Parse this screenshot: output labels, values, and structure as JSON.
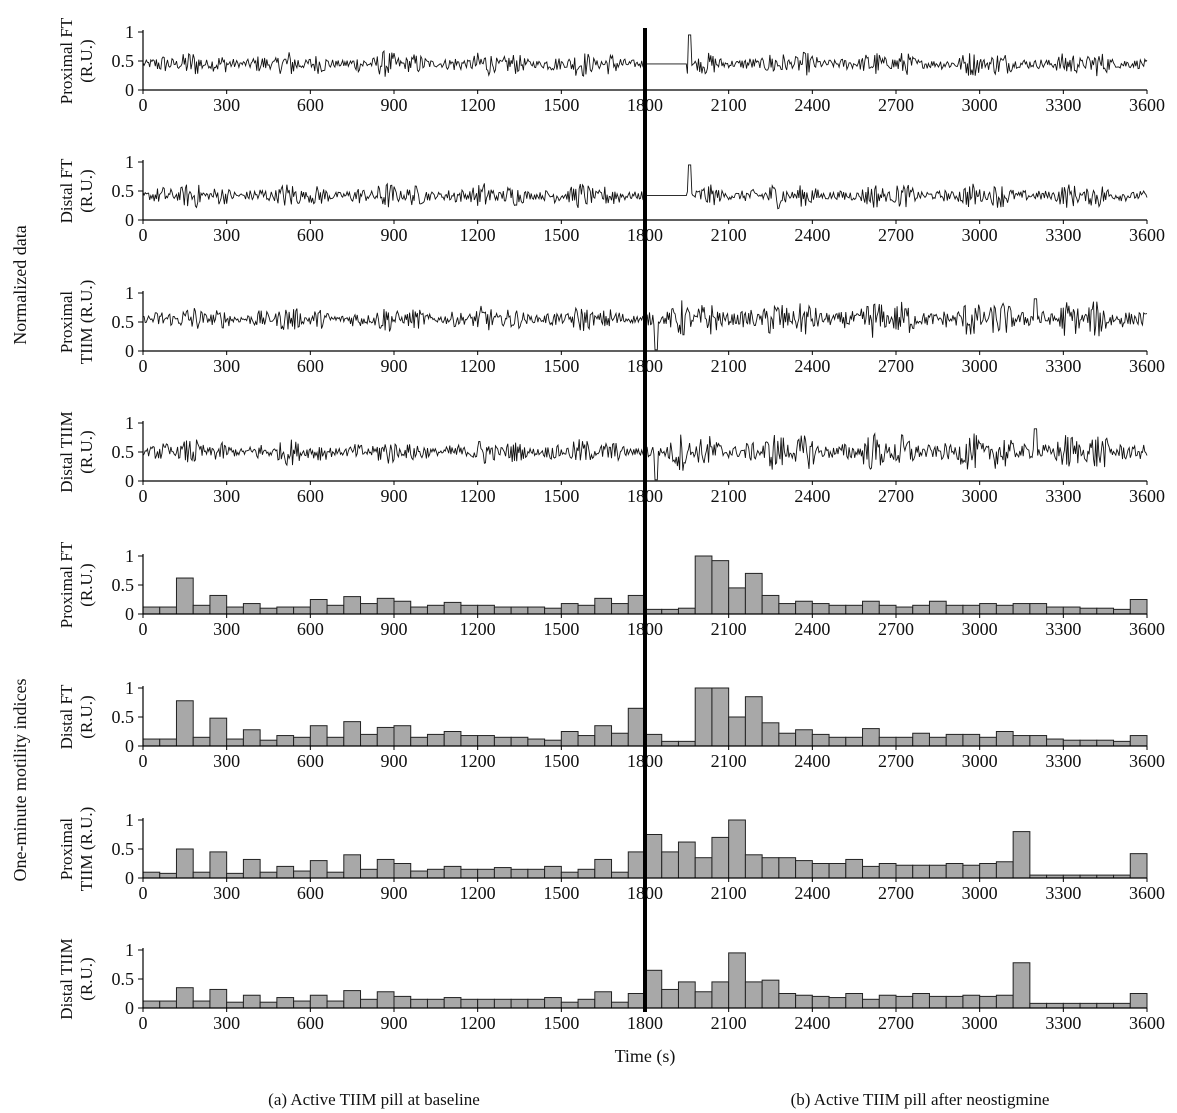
{
  "figure": {
    "group_labels": [
      "Normalized data",
      "One-minute motility indices"
    ],
    "xlabel": "Time (s)",
    "captions": [
      "(a) Active TIIM pill at baseline",
      "(b) Active TIIM pill after neostigmine"
    ]
  },
  "chart_data": [
    {
      "type": "line",
      "group": "Normalized data",
      "ylabel": [
        "Proximal FT",
        "(R.U.)"
      ],
      "xlim": [
        0,
        3600
      ],
      "ylim": [
        0,
        1
      ],
      "xticks": [
        0,
        300,
        600,
        900,
        1200,
        1500,
        1800,
        2100,
        2400,
        2700,
        3000,
        3300,
        3600
      ],
      "yticks": [
        0,
        0.5,
        1
      ],
      "ytick_labels": [
        "0",
        "0.5",
        "1"
      ],
      "baseline": 0.45,
      "series_description": "oscillating signal around 0.45; flat near 1800-1950; spike near 1960"
    },
    {
      "type": "line",
      "group": "Normalized data",
      "ylabel": [
        "Distal FT",
        "(R.U.)"
      ],
      "xlim": [
        0,
        3600
      ],
      "ylim": [
        0,
        1
      ],
      "xticks": [
        0,
        300,
        600,
        900,
        1200,
        1500,
        1800,
        2100,
        2400,
        2700,
        3000,
        3300,
        3600
      ],
      "yticks": [
        0,
        0.5,
        1
      ],
      "ytick_labels": [
        "0",
        "0.5",
        "1"
      ],
      "baseline": 0.42,
      "series_description": "oscillating signal around 0.42; flat near 1800-1950; spike near 1960"
    },
    {
      "type": "line",
      "group": "Normalized data",
      "ylabel": [
        "Proximal",
        "TIIM (R.U.)"
      ],
      "xlim": [
        0,
        3600
      ],
      "ylim": [
        0,
        1
      ],
      "xticks": [
        0,
        300,
        600,
        900,
        1200,
        1500,
        1800,
        2100,
        2400,
        2700,
        3000,
        3300,
        3600
      ],
      "yticks": [
        0,
        0.5,
        1
      ],
      "ytick_labels": [
        "0",
        "0.5",
        "1"
      ],
      "baseline": 0.55,
      "series_description": "oscillating signal around 0.55; larger amplitude after 1900"
    },
    {
      "type": "line",
      "group": "Normalized data",
      "ylabel": [
        "Distal TIIM",
        "(R.U.)"
      ],
      "xlim": [
        0,
        3600
      ],
      "ylim": [
        0,
        1
      ],
      "xticks": [
        0,
        300,
        600,
        900,
        1200,
        1500,
        1800,
        2100,
        2400,
        2700,
        3000,
        3300,
        3600
      ],
      "yticks": [
        0,
        0.5,
        1
      ],
      "ytick_labels": [
        "0",
        "0.5",
        "1"
      ],
      "baseline": 0.5,
      "series_description": "oscillating signal around 0.5; larger amplitude after 1900"
    },
    {
      "type": "bar",
      "group": "One-minute motility indices",
      "ylabel": [
        "Proximal FT",
        "(R.U.)"
      ],
      "xlim": [
        0,
        3600
      ],
      "ylim": [
        0,
        1
      ],
      "xticks": [
        0,
        300,
        600,
        900,
        1200,
        1500,
        1800,
        2100,
        2400,
        2700,
        3000,
        3300,
        3600
      ],
      "yticks": [
        0,
        0.5,
        1
      ],
      "ytick_labels": [
        "0",
        "0.5",
        "1"
      ],
      "bin_width": 60,
      "values": [
        0.12,
        0.12,
        0.62,
        0.15,
        0.32,
        0.12,
        0.18,
        0.1,
        0.12,
        0.12,
        0.25,
        0.15,
        0.3,
        0.18,
        0.27,
        0.22,
        0.12,
        0.15,
        0.2,
        0.15,
        0.15,
        0.12,
        0.12,
        0.12,
        0.1,
        0.18,
        0.15,
        0.27,
        0.18,
        0.32,
        0.08,
        0.08,
        0.1,
        1.0,
        0.92,
        0.45,
        0.7,
        0.32,
        0.18,
        0.22,
        0.18,
        0.15,
        0.15,
        0.22,
        0.15,
        0.12,
        0.15,
        0.22,
        0.15,
        0.15,
        0.18,
        0.15,
        0.18,
        0.18,
        0.12,
        0.12,
        0.1,
        0.1,
        0.08,
        0.25
      ]
    },
    {
      "type": "bar",
      "group": "One-minute motility indices",
      "ylabel": [
        "Distal FT",
        "(R.U.)"
      ],
      "xlim": [
        0,
        3600
      ],
      "ylim": [
        0,
        1
      ],
      "xticks": [
        0,
        300,
        600,
        900,
        1200,
        1500,
        1800,
        2100,
        2400,
        2700,
        3000,
        3300,
        3600
      ],
      "yticks": [
        0,
        0.5,
        1
      ],
      "ytick_labels": [
        "0",
        "0.5",
        "1"
      ],
      "bin_width": 60,
      "values": [
        0.12,
        0.12,
        0.78,
        0.15,
        0.48,
        0.12,
        0.28,
        0.1,
        0.18,
        0.15,
        0.35,
        0.15,
        0.42,
        0.2,
        0.32,
        0.35,
        0.15,
        0.2,
        0.25,
        0.18,
        0.18,
        0.15,
        0.15,
        0.12,
        0.1,
        0.25,
        0.18,
        0.35,
        0.22,
        0.65,
        0.2,
        0.08,
        0.08,
        1.0,
        1.0,
        0.5,
        0.85,
        0.4,
        0.22,
        0.28,
        0.2,
        0.15,
        0.15,
        0.3,
        0.15,
        0.15,
        0.22,
        0.15,
        0.2,
        0.2,
        0.15,
        0.25,
        0.18,
        0.18,
        0.12,
        0.1,
        0.1,
        0.1,
        0.08,
        0.18
      ]
    },
    {
      "type": "bar",
      "group": "One-minute motility indices",
      "ylabel": [
        "Proximal",
        "TIIM (R.U.)"
      ],
      "xlim": [
        0,
        3600
      ],
      "ylim": [
        0,
        1
      ],
      "xticks": [
        0,
        300,
        600,
        900,
        1200,
        1500,
        1800,
        2100,
        2400,
        2700,
        3000,
        3300,
        3600
      ],
      "yticks": [
        0,
        0.5,
        1
      ],
      "ytick_labels": [
        "0",
        "0.5",
        "1"
      ],
      "bin_width": 60,
      "values": [
        0.1,
        0.08,
        0.5,
        0.1,
        0.45,
        0.08,
        0.32,
        0.1,
        0.2,
        0.12,
        0.3,
        0.1,
        0.4,
        0.15,
        0.32,
        0.25,
        0.12,
        0.15,
        0.2,
        0.15,
        0.15,
        0.18,
        0.15,
        0.15,
        0.2,
        0.1,
        0.15,
        0.32,
        0.1,
        0.45,
        0.75,
        0.45,
        0.62,
        0.35,
        0.7,
        1.0,
        0.4,
        0.35,
        0.35,
        0.3,
        0.25,
        0.25,
        0.32,
        0.2,
        0.25,
        0.22,
        0.22,
        0.22,
        0.25,
        0.22,
        0.25,
        0.28,
        0.8,
        0.05,
        0.05,
        0.05,
        0.05,
        0.05,
        0.05,
        0.42
      ]
    },
    {
      "type": "bar",
      "group": "One-minute motility indices",
      "ylabel": [
        "Distal TIIM",
        "(R.U.)"
      ],
      "xlim": [
        0,
        3600
      ],
      "ylim": [
        0,
        1
      ],
      "xticks": [
        0,
        300,
        600,
        900,
        1200,
        1500,
        1800,
        2100,
        2400,
        2700,
        3000,
        3300,
        3600
      ],
      "yticks": [
        0,
        0.5,
        1
      ],
      "ytick_labels": [
        "0",
        "0.5",
        "1"
      ],
      "bin_width": 60,
      "values": [
        0.12,
        0.12,
        0.35,
        0.12,
        0.32,
        0.1,
        0.22,
        0.1,
        0.18,
        0.12,
        0.22,
        0.12,
        0.3,
        0.15,
        0.28,
        0.2,
        0.15,
        0.15,
        0.18,
        0.15,
        0.15,
        0.15,
        0.15,
        0.15,
        0.18,
        0.1,
        0.15,
        0.28,
        0.1,
        0.25,
        0.65,
        0.32,
        0.45,
        0.28,
        0.45,
        0.95,
        0.45,
        0.48,
        0.25,
        0.22,
        0.2,
        0.18,
        0.25,
        0.15,
        0.22,
        0.2,
        0.25,
        0.2,
        0.2,
        0.22,
        0.2,
        0.22,
        0.78,
        0.08,
        0.08,
        0.08,
        0.08,
        0.08,
        0.08,
        0.25
      ]
    }
  ]
}
